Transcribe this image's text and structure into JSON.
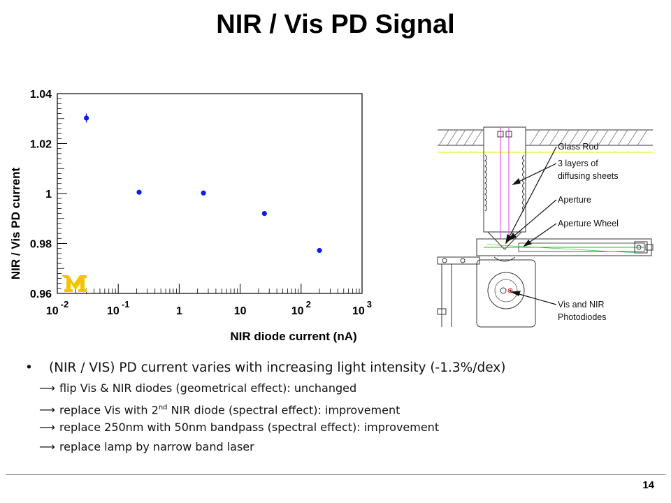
{
  "slide": {
    "title": "NIR / Vis PD Signal",
    "page_number": "14"
  },
  "chart_data": {
    "type": "scatter",
    "xlabel": "NIR diode current (nA)",
    "ylabel": "NIR / Vis PD current",
    "x_scale": "log",
    "xlim": [
      0.01,
      1000
    ],
    "ylim": [
      0.96,
      1.04
    ],
    "x_ticks": [
      {
        "base": "10",
        "exp": "-2",
        "value": 0.01
      },
      {
        "base": "10",
        "exp": "-1",
        "value": 0.1
      },
      {
        "base": "1",
        "exp": "",
        "value": 1
      },
      {
        "base": "10",
        "exp": "",
        "value": 10
      },
      {
        "base": "10",
        "exp": "2",
        "value": 100
      },
      {
        "base": "10",
        "exp": "3",
        "value": 1000
      }
    ],
    "y_ticks": [
      {
        "label": "0.96",
        "value": 0.96
      },
      {
        "label": "0.98",
        "value": 0.98
      },
      {
        "label": "1",
        "value": 1.0
      },
      {
        "label": "1.02",
        "value": 1.02
      },
      {
        "label": "1.04",
        "value": 1.04
      }
    ],
    "series": [
      {
        "color": "#0a1ee6",
        "points": [
          {
            "x": 0.03,
            "y": 1.0302,
            "err": 0.0018
          },
          {
            "x": 0.22,
            "y": 1.0005,
            "err": 0.0
          },
          {
            "x": 2.5,
            "y": 1.0002,
            "err": 0.0
          },
          {
            "x": 25,
            "y": 0.992,
            "err": 0.0
          },
          {
            "x": 200,
            "y": 0.9772,
            "err": 0.0
          }
        ]
      }
    ],
    "grid": false,
    "logo": {
      "name": "university-logo",
      "color": "#f5c400"
    }
  },
  "diagram": {
    "labels": {
      "glass_rod": "Glass Rod",
      "diffusing_1": "3 layers of",
      "diffusing_2": "diffusing sheets",
      "aperture": "Aperture",
      "aperture_wheel": "Aperture Wheel",
      "photodiodes_1": "Vis and NIR",
      "photodiodes_2": "Photodiodes"
    }
  },
  "bullets": {
    "main": "(NIR / VIS) PD current varies with increasing light intensity (-1.3%/dex)",
    "arrow": "⟶",
    "sub1": "flip Vis & NIR diodes (geometrical effect): unchanged",
    "sub2_pre": "replace Vis with 2",
    "sub2_sup": "nd",
    "sub2_post": " NIR diode (spectral effect): improvement",
    "sub3": "replace 250nm with 50nm bandpass (spectral effect): improvement",
    "sub4": "replace lamp by narrow band laser"
  }
}
